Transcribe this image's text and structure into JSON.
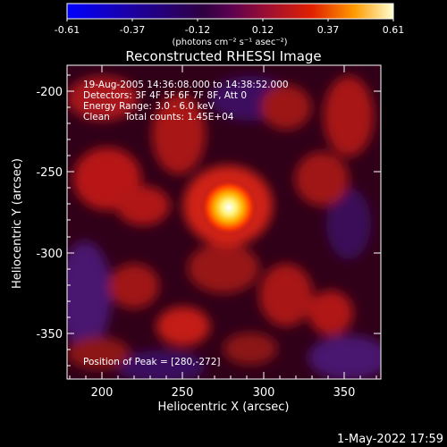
{
  "colorbar": {
    "ticks": [
      "-0.61",
      "-0.37",
      "-0.12",
      "0.12",
      "0.37",
      "0.61"
    ],
    "unit_label": "(photons cm⁻² s⁻¹ asec⁻²)",
    "range": [
      -0.61,
      0.61
    ]
  },
  "title": "Reconstructed RHESSI Image",
  "info": {
    "time_range": "19-Aug-2005 14:36:08.000 to 14:38:52.000",
    "detectors": "Detectors: 3F 4F 5F 6F 7F 8F, Att 0",
    "energy_range": "Energy Range: 3.0 - 6.0 keV",
    "clean_counts": "Clean     Total counts: 1.45E+04"
  },
  "peak_label": "Position of Peak = [280,-272]",
  "axes": {
    "xlabel": "Heliocentric X (arcsec)",
    "ylabel": "Heliocentric Y (arcsec)",
    "x_ticks": [
      "200",
      "250",
      "300",
      "350"
    ],
    "y_ticks": [
      "-200",
      "-250",
      "-300",
      "-350"
    ],
    "xlim": [
      178,
      372
    ],
    "ylim": [
      -382,
      -188
    ]
  },
  "footer_date": "1-May-2022 17:59",
  "colors": {
    "background": "#000000",
    "foreground": "#ffffff",
    "colormap": [
      "#0000ff",
      "#000000",
      "#400060",
      "#a01030",
      "#ff2000",
      "#ff9a00",
      "#ffff80",
      "#ffffff"
    ]
  }
}
